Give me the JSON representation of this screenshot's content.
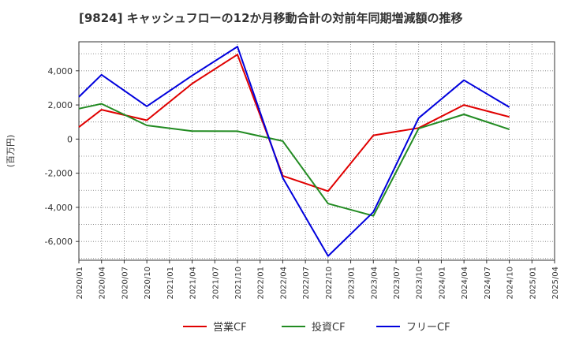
{
  "chart_data": {
    "type": "line",
    "title": "[9824]  キャッシュフローの12か月移動合計の対前年同期増減額の推移",
    "ylabel": "(百万円)",
    "xlabel": "",
    "ylim": [
      -7100,
      5700
    ],
    "yticks": [
      4000,
      2000,
      0,
      -2000,
      -4000,
      -6000
    ],
    "ytick_labels": [
      "4,000",
      "2,000",
      "0",
      "-2,000",
      "-4,000",
      "-6,000"
    ],
    "x": [
      "2020/01",
      "2020/04",
      "2020/07",
      "2020/10",
      "2021/01",
      "2021/04",
      "2021/07",
      "2021/10",
      "2022/01",
      "2022/04",
      "2022/07",
      "2022/10",
      "2023/01",
      "2023/04",
      "2023/07",
      "2023/10",
      "2024/01",
      "2024/04",
      "2024/07",
      "2024/10",
      "2025/01",
      "2025/04"
    ],
    "grid": true,
    "legend_position": "bottom",
    "series": [
      {
        "name": "営業CF",
        "color": "#e00000",
        "values": [
          700,
          1720,
          null,
          1100,
          null,
          3250,
          null,
          4950,
          null,
          -2150,
          null,
          -3050,
          null,
          220,
          null,
          650,
          null,
          2000,
          null,
          1300,
          null,
          null
        ]
      },
      {
        "name": "投資CF",
        "color": "#228b22",
        "values": [
          1780,
          2070,
          null,
          800,
          null,
          470,
          null,
          460,
          null,
          -120,
          null,
          -3780,
          null,
          -4500,
          null,
          620,
          null,
          1450,
          null,
          570,
          null,
          null
        ]
      },
      {
        "name": "フリーCF",
        "color": "#0000dd",
        "values": [
          2470,
          3770,
          null,
          1920,
          null,
          3720,
          null,
          5420,
          null,
          -2270,
          null,
          -6850,
          null,
          -4270,
          null,
          1230,
          null,
          3450,
          null,
          1870,
          null,
          null
        ]
      }
    ]
  }
}
